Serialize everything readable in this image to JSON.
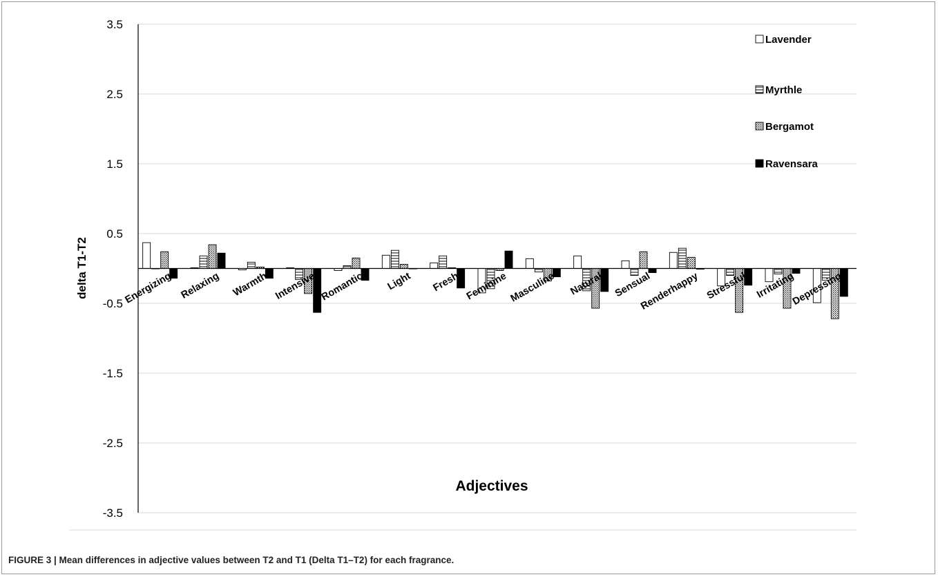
{
  "caption": {
    "text": "FIGURE 3 | Mean differences in adjective values between T2 and T1 (Delta T1–T2) for each fragrance."
  },
  "chart_data": {
    "type": "bar",
    "title": "",
    "xlabel": "Adjectives",
    "ylabel": "delta T1-T2",
    "ylim": [
      -3.5,
      3.5
    ],
    "yticks": [
      3.5,
      2.5,
      1.5,
      0.5,
      -0.5,
      -1.5,
      -2.5,
      -3.5
    ],
    "ytick_labels": [
      "3.5",
      "2.5",
      "1.5",
      "0.5",
      "-0.5",
      "-1.5",
      "-2.5",
      "-3.5"
    ],
    "grid": true,
    "legend_position": "top-right",
    "categories": [
      "Energizing",
      "Relaxing",
      "Warmth",
      "Intensive",
      "Romantic",
      "Light",
      "Fresh",
      "Feminine",
      "Masculine",
      "Natural",
      "Sensual",
      "Renderhappy",
      "Stressful",
      "Irritating",
      "Depressing"
    ],
    "series": [
      {
        "name": "Lavender",
        "pattern": "white",
        "values": [
          0.37,
          0.01,
          -0.02,
          0.01,
          -0.03,
          0.19,
          0.08,
          -0.35,
          0.14,
          0.18,
          0.11,
          0.23,
          -0.25,
          -0.19,
          -0.49
        ]
      },
      {
        "name": "Myrthle",
        "pattern": "horizontal-stripes",
        "values": [
          0.0,
          0.18,
          0.09,
          -0.16,
          0.04,
          0.26,
          0.18,
          -0.29,
          -0.05,
          -0.32,
          -0.1,
          0.29,
          -0.1,
          -0.08,
          -0.17
        ]
      },
      {
        "name": "Bergamot",
        "pattern": "dots",
        "values": [
          0.24,
          0.34,
          0.02,
          -0.36,
          0.15,
          0.06,
          0.01,
          -0.03,
          -0.18,
          -0.57,
          0.24,
          0.16,
          -0.63,
          -0.57,
          -0.72
        ]
      },
      {
        "name": "Ravensara",
        "pattern": "black",
        "values": [
          -0.14,
          0.22,
          -0.14,
          -0.63,
          -0.17,
          0.0,
          -0.28,
          0.25,
          -0.12,
          -0.33,
          -0.06,
          -0.01,
          -0.24,
          -0.07,
          -0.4
        ]
      }
    ]
  }
}
